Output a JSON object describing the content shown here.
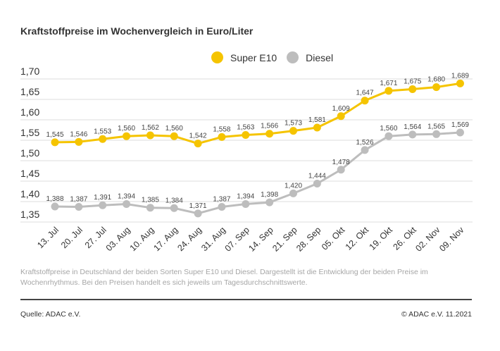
{
  "chart_data": {
    "type": "line",
    "title": "Kraftstoffpreise im Wochenvergleich in Euro/Liter",
    "categories": [
      "13. Jul",
      "20. Jul",
      "27. Jul",
      "03. Aug",
      "10. Aug",
      "17. Aug",
      "24. Aug",
      "31. Aug",
      "07. Sep",
      "14. Sep",
      "21. Sep",
      "28. Sep",
      "05. Okt",
      "12. Okt",
      "19. Okt",
      "26. Okt",
      "02. Nov",
      "09. Nov"
    ],
    "series": [
      {
        "name": "Super E10",
        "color": "#f5c400",
        "values": [
          1.545,
          1.546,
          1.553,
          1.56,
          1.562,
          1.56,
          1.542,
          1.558,
          1.563,
          1.566,
          1.573,
          1.581,
          1.609,
          1.647,
          1.671,
          1.675,
          1.68,
          1.689
        ],
        "labels": [
          "1,545",
          "1,546",
          "1,553",
          "1,560",
          "1,562",
          "1,560",
          "1,542",
          "1,558",
          "1,563",
          "1,566",
          "1,573",
          "1,581",
          "1,609",
          "1,647",
          "1,671",
          "1,675",
          "1,680",
          "1,689"
        ]
      },
      {
        "name": "Diesel",
        "color": "#bdbdbd",
        "values": [
          1.388,
          1.387,
          1.391,
          1.394,
          1.385,
          1.384,
          1.371,
          1.387,
          1.394,
          1.398,
          1.42,
          1.444,
          1.478,
          1.526,
          1.56,
          1.564,
          1.565,
          1.569
        ],
        "labels": [
          "1,388",
          "1,387",
          "1,391",
          "1,394",
          "1,385",
          "1,384",
          "1,371",
          "1,387",
          "1,394",
          "1,398",
          "1,420",
          "1,444",
          "1,478",
          "1,526",
          "1,560",
          "1,564",
          "1,565",
          "1,569"
        ]
      }
    ],
    "ylim": [
      1.35,
      1.7
    ],
    "yticks": [
      1.7,
      1.65,
      1.6,
      1.55,
      1.5,
      1.45,
      1.4,
      1.35
    ],
    "ytick_labels": [
      "1,70",
      "1,65",
      "1,60",
      "1,55",
      "1,50",
      "1,45",
      "1,40",
      "1,35"
    ],
    "grid": true,
    "legend_position": "top-center"
  },
  "caption": "Kraftstoffpreise in Deutschland der beiden Sorten Super E10 und Diesel. Dargestellt ist die Entwicklung der beiden Preise im Wochenrhythmus. Bei den Preisen handelt es sich jeweils um Tagesdurchschnittswerte.",
  "source": "Quelle: ADAC e.V.",
  "copyright": "© ADAC e.V. 11.2021"
}
